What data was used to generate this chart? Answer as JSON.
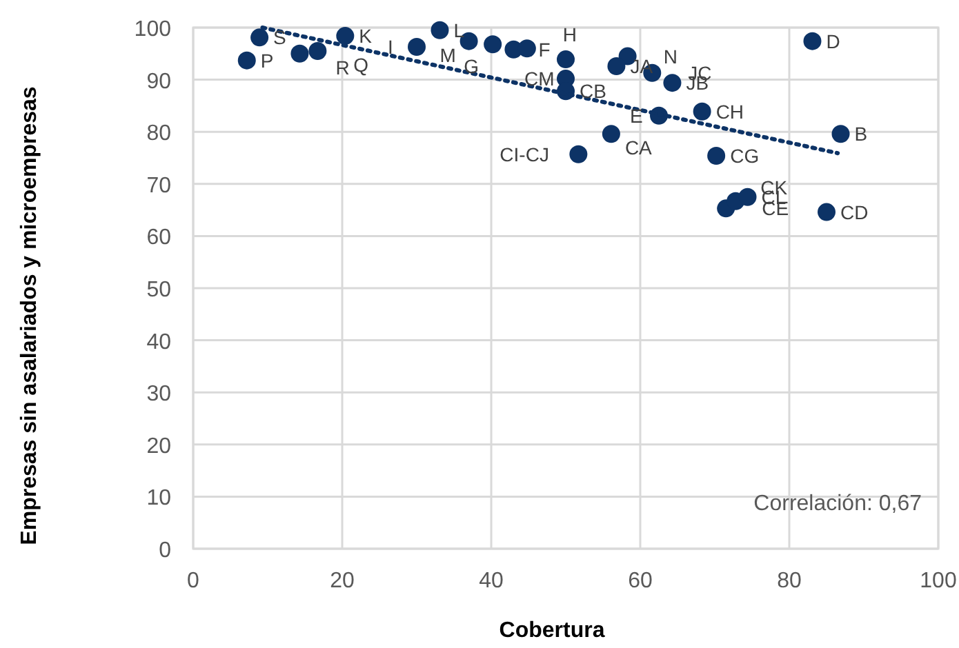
{
  "chart_data": {
    "type": "scatter",
    "xlabel": "Cobertura",
    "ylabel": "Empresas sin asalariados y microempresas",
    "xlim": [
      0,
      100
    ],
    "ylim": [
      0,
      100
    ],
    "xticks": [
      0,
      20,
      40,
      60,
      80,
      100
    ],
    "yticks": [
      0,
      10,
      20,
      30,
      40,
      50,
      60,
      70,
      80,
      90,
      100
    ],
    "grid": true,
    "marker": "circle",
    "series": [
      {
        "type": "scatter",
        "color": "#0d3366",
        "x": [
          7.2,
          8.9,
          14.3,
          16.7,
          20.4,
          30.0,
          33.1,
          37.0,
          40.2,
          43.0,
          44.8,
          50.0,
          50.0,
          50.0,
          58.3,
          56.8,
          61.6,
          64.3,
          62.5,
          68.3,
          56.1,
          51.7,
          70.2,
          86.9,
          83.1,
          71.5,
          72.8,
          74.4,
          85.0
        ],
        "values": [
          93.7,
          98.1,
          95.0,
          95.5,
          98.4,
          96.3,
          99.5,
          97.4,
          96.8,
          95.8,
          96.0,
          93.9,
          90.2,
          87.8,
          94.5,
          92.6,
          91.3,
          89.4,
          83.1,
          83.9,
          79.6,
          75.7,
          75.4,
          79.6,
          97.4,
          65.3,
          66.7,
          67.5,
          64.6
        ]
      },
      {
        "type": "line",
        "color": "#0d3366",
        "line_style": "dotted",
        "marker": "none",
        "x": [
          9.3,
          86.5
        ],
        "values": [
          100,
          75.9
        ]
      }
    ],
    "annotations": [
      {
        "text": "P",
        "x": 7.2,
        "y": 93.7
      },
      {
        "text": "S",
        "x": 8.9,
        "y": 98.1
      },
      {
        "text": "R",
        "x": 14.3,
        "y": 95.0
      },
      {
        "text": "Q",
        "x": 16.7,
        "y": 95.5
      },
      {
        "text": "K",
        "x": 20.4,
        "y": 98.4
      },
      {
        "text": "I",
        "x": 30.0,
        "y": 96.3
      },
      {
        "text": "L",
        "x": 33.1,
        "y": 99.5
      },
      {
        "text": "M",
        "x": 37.0,
        "y": 97.4
      },
      {
        "text": "G",
        "x": 40.2,
        "y": 96.8
      },
      {
        "text": "F",
        "x": 43.0,
        "y": 95.8
      },
      {
        "text": "H",
        "x": 44.8,
        "y": 96.0
      },
      {
        "text": "CM",
        "x": 50.0,
        "y": 90.2
      },
      {
        "text": "CB",
        "x": 50.0,
        "y": 87.8
      },
      {
        "text": "N",
        "x": 58.3,
        "y": 94.5
      },
      {
        "text": "JA",
        "x": 56.8,
        "y": 92.6
      },
      {
        "text": "JC",
        "x": 61.6,
        "y": 91.3
      },
      {
        "text": "JB",
        "x": 64.3,
        "y": 89.4
      },
      {
        "text": "E",
        "x": 62.5,
        "y": 83.1
      },
      {
        "text": "CH",
        "x": 68.3,
        "y": 83.9
      },
      {
        "text": "CA",
        "x": 56.1,
        "y": 79.6
      },
      {
        "text": "CI-CJ",
        "x": 51.7,
        "y": 75.7
      },
      {
        "text": "CG",
        "x": 70.2,
        "y": 75.4
      },
      {
        "text": "B",
        "x": 86.9,
        "y": 79.6
      },
      {
        "text": "D",
        "x": 83.1,
        "y": 97.4
      },
      {
        "text": "CE",
        "x": 71.5,
        "y": 65.3
      },
      {
        "text": "CK",
        "x": 72.8,
        "y": 66.7
      },
      {
        "text": "CL",
        "x": 74.4,
        "y": 67.5
      },
      {
        "text": "CD",
        "x": 85.0,
        "y": 64.6
      },
      "Correlación: 0,67"
    ]
  }
}
